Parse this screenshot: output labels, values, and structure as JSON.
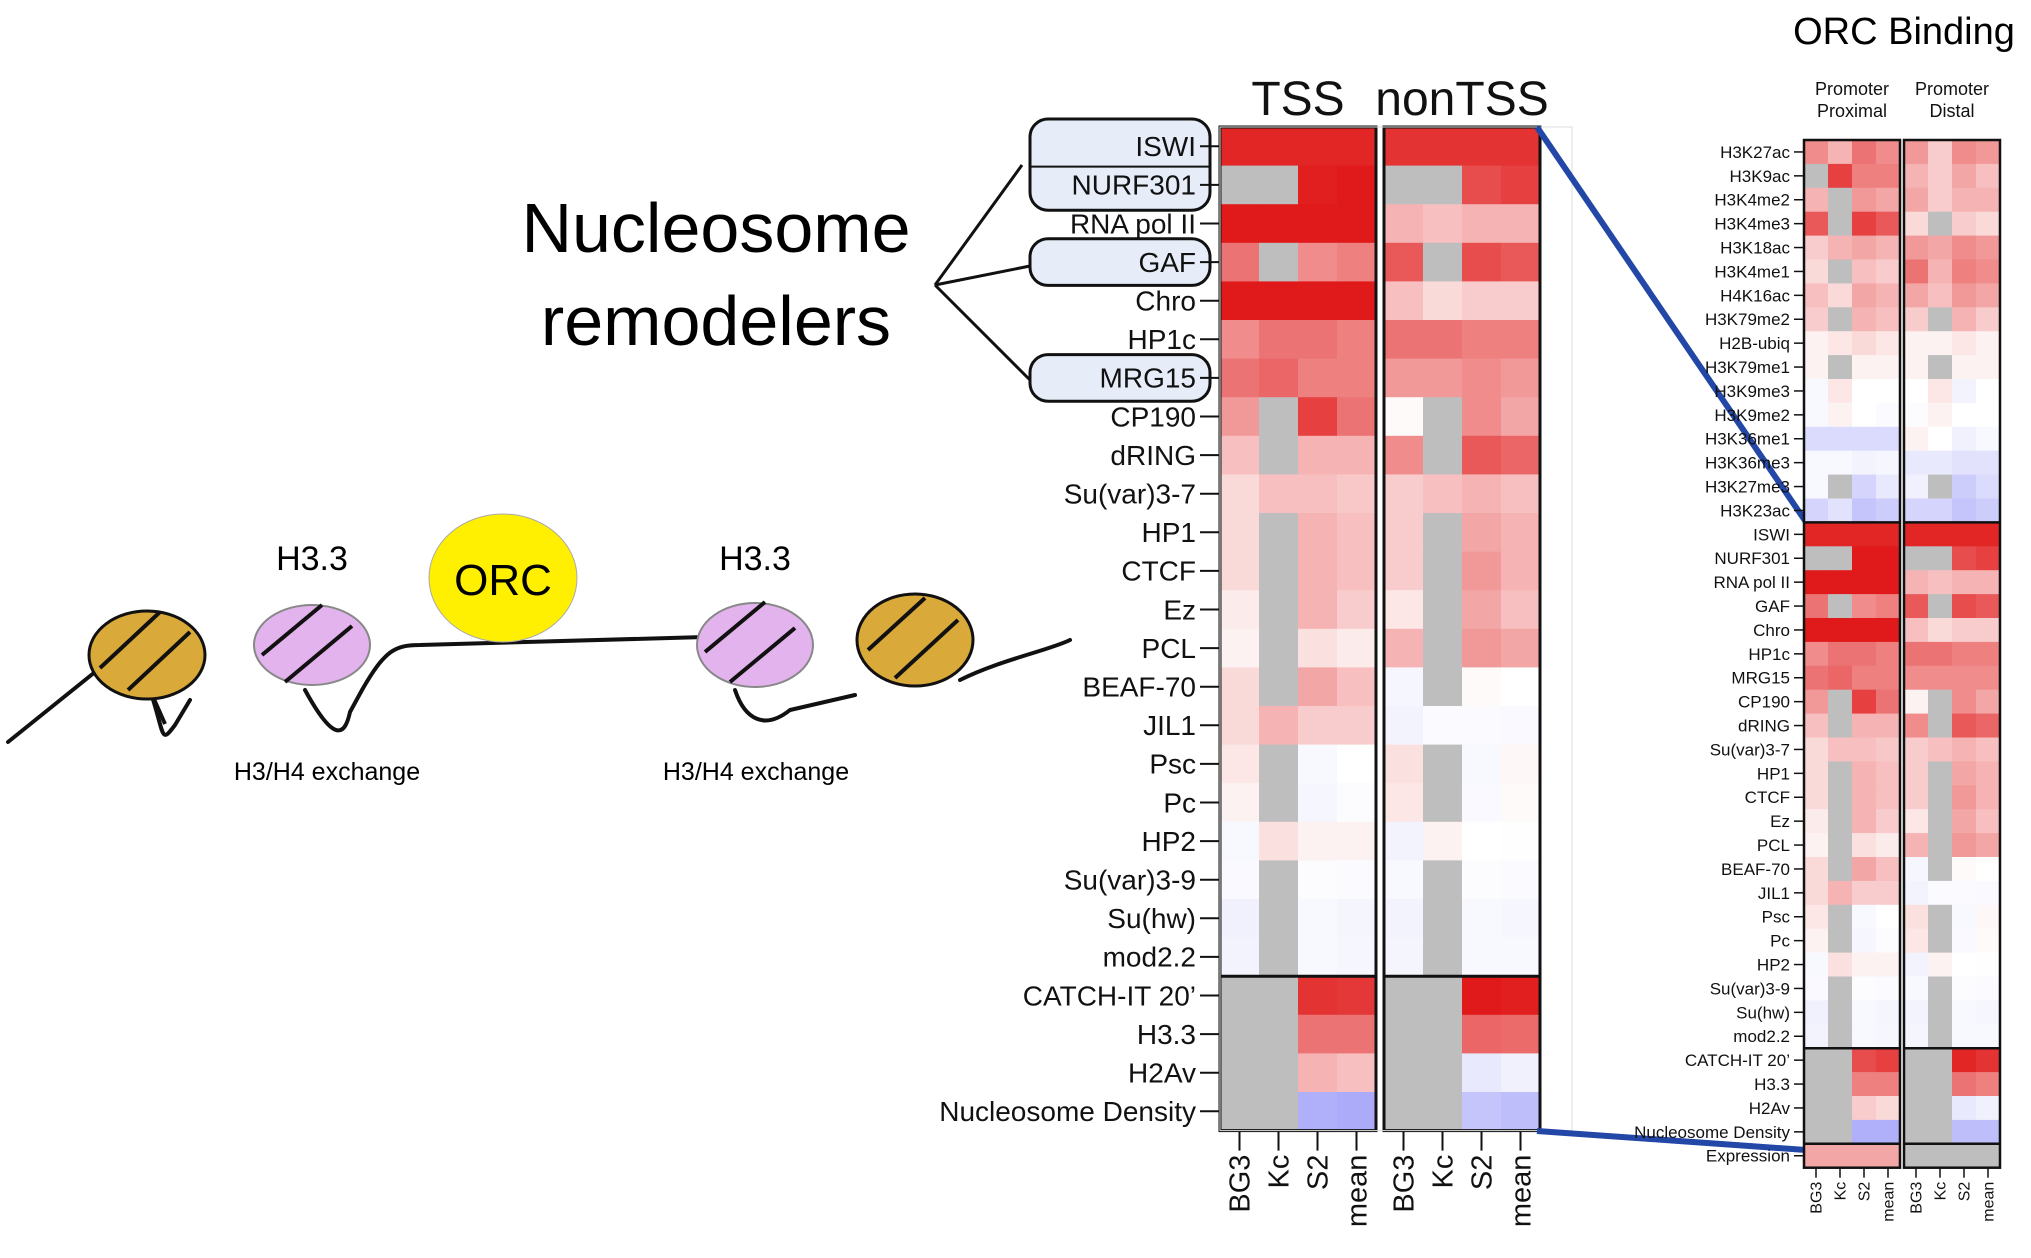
{
  "left_panel": {
    "heading_line1": "Nucleosome",
    "heading_line2": "remodelers",
    "orc_label": "ORC",
    "h33_left": "H3.3",
    "h33_right": "H3.3",
    "exchange_left": "H3/H4 exchange",
    "exchange_right": "H3/H4 exchange"
  },
  "middle_heatmap": {
    "group_titles": [
      "TSS",
      "nonTSS"
    ],
    "column_labels": [
      "BG3",
      "Kc",
      "S2",
      "mean",
      "BG3",
      "Kc",
      "S2",
      "mean"
    ],
    "highlighted_rows": [
      "ISWI",
      "NURF301",
      "GAF",
      "MRG15"
    ],
    "row_labels": [
      "ISWI",
      "NURF301",
      "RNA pol II",
      "GAF",
      "Chro",
      "HP1c",
      "MRG15",
      "CP190",
      "dRING",
      "Su(var)3-7",
      "HP1",
      "CTCF",
      "Ez",
      "PCL",
      "BEAF-70",
      "JIL1",
      "Psc",
      "Pc",
      "HP2",
      "Su(var)3-9",
      "Su(hw)",
      "mod2.2",
      "CATCH-IT 20’",
      "H3.3",
      "H2Av",
      "Nucleosome Density"
    ],
    "values": [
      [
        0.85,
        0.85,
        0.85,
        0.85,
        0.8,
        0.8,
        0.8,
        0.8
      ],
      [
        null,
        null,
        0.88,
        0.9,
        null,
        null,
        0.7,
        0.75
      ],
      [
        0.9,
        0.9,
        0.9,
        0.9,
        0.3,
        0.25,
        0.3,
        0.3
      ],
      [
        0.55,
        null,
        0.45,
        0.5,
        0.65,
        null,
        0.7,
        0.65
      ],
      [
        0.9,
        0.9,
        0.9,
        0.9,
        0.25,
        0.15,
        0.2,
        0.2
      ],
      [
        0.45,
        0.55,
        0.55,
        0.5,
        0.55,
        0.55,
        0.5,
        0.5
      ],
      [
        0.55,
        0.6,
        0.5,
        0.5,
        0.4,
        0.4,
        0.45,
        0.4
      ],
      [
        0.4,
        null,
        0.75,
        0.55,
        0.02,
        null,
        0.45,
        0.35
      ],
      [
        0.25,
        null,
        0.3,
        0.3,
        0.45,
        null,
        0.65,
        0.6
      ],
      [
        0.15,
        0.25,
        0.25,
        0.22,
        0.2,
        0.25,
        0.3,
        0.25
      ],
      [
        0.15,
        null,
        0.3,
        0.25,
        0.2,
        null,
        0.35,
        0.3
      ],
      [
        0.15,
        null,
        0.3,
        0.25,
        0.2,
        null,
        0.4,
        0.3
      ],
      [
        0.08,
        null,
        0.3,
        0.2,
        0.1,
        null,
        0.35,
        0.25
      ],
      [
        0.05,
        null,
        0.12,
        0.08,
        0.3,
        null,
        0.4,
        0.35
      ],
      [
        0.15,
        null,
        0.35,
        0.25,
        -0.06,
        null,
        0.02,
        0.0
      ],
      [
        0.15,
        0.3,
        0.2,
        0.2,
        -0.08,
        -0.03,
        -0.03,
        -0.04
      ],
      [
        0.1,
        null,
        -0.05,
        0.0,
        0.12,
        null,
        -0.05,
        0.03
      ],
      [
        0.05,
        null,
        -0.06,
        -0.02,
        0.1,
        null,
        -0.04,
        0.02
      ],
      [
        -0.05,
        0.12,
        0.05,
        0.05,
        -0.08,
        0.05,
        0.0,
        -0.01
      ],
      [
        -0.04,
        null,
        -0.02,
        -0.03,
        -0.05,
        null,
        -0.02,
        -0.03
      ],
      [
        -0.1,
        null,
        -0.05,
        -0.07,
        -0.08,
        null,
        -0.05,
        -0.06
      ],
      [
        -0.08,
        null,
        -0.05,
        -0.06,
        -0.07,
        null,
        -0.05,
        -0.05
      ],
      [
        null,
        null,
        0.8,
        0.78,
        null,
        null,
        0.9,
        0.88
      ],
      [
        null,
        null,
        0.55,
        0.55,
        null,
        null,
        0.6,
        0.58
      ],
      [
        null,
        null,
        0.3,
        0.25,
        null,
        null,
        -0.15,
        -0.1
      ],
      [
        null,
        null,
        -0.55,
        -0.58,
        null,
        null,
        -0.4,
        -0.45
      ]
    ]
  },
  "right_heatmap": {
    "title": "ORC Binding",
    "group_titles": [
      [
        "Promoter",
        "Proximal"
      ],
      [
        "Promoter",
        "Distal"
      ]
    ],
    "column_labels": [
      "BG3",
      "Kc",
      "S2",
      "mean",
      "BG3",
      "Kc",
      "S2",
      "mean"
    ],
    "row_labels": [
      "H3K27ac",
      "H3K9ac",
      "H3K4me2",
      "H3K4me3",
      "H3K18ac",
      "H3K4me1",
      "H4K16ac",
      "H3K79me2",
      "H2B-ubiq",
      "H3K79me1",
      "H3K9me3",
      "H3K9me2",
      "H3K36me1",
      "H3K36me3",
      "H3K27me3",
      "H3K23ac",
      "ISWI",
      "NURF301",
      "RNA pol II",
      "GAF",
      "Chro",
      "HP1c",
      "MRG15",
      "CP190",
      "dRING",
      "Su(var)3-7",
      "HP1",
      "CTCF",
      "Ez",
      "PCL",
      "BEAF-70",
      "JIL1",
      "Psc",
      "Pc",
      "HP2",
      "Su(var)3-9",
      "Su(hw)",
      "mod2.2",
      "CATCH-IT 20’",
      "H3.3",
      "H2Av",
      "Nucleosome Density",
      "Expression"
    ],
    "values": [
      [
        0.45,
        0.3,
        0.55,
        0.45,
        0.4,
        0.2,
        0.45,
        0.4
      ],
      [
        null,
        0.75,
        0.5,
        0.5,
        0.3,
        0.2,
        0.35,
        0.25
      ],
      [
        0.3,
        null,
        0.4,
        0.35,
        0.35,
        0.2,
        0.3,
        0.3
      ],
      [
        0.65,
        null,
        0.75,
        0.65,
        0.15,
        null,
        0.2,
        0.15
      ],
      [
        0.2,
        0.3,
        0.35,
        0.3,
        0.4,
        0.35,
        0.45,
        0.4
      ],
      [
        0.15,
        null,
        0.25,
        0.2,
        0.55,
        0.3,
        0.5,
        0.45
      ],
      [
        0.25,
        0.15,
        0.35,
        0.3,
        0.35,
        0.25,
        0.4,
        0.35
      ],
      [
        0.2,
        null,
        0.3,
        0.25,
        0.2,
        null,
        0.3,
        0.2
      ],
      [
        0.05,
        0.1,
        0.15,
        0.1,
        0.05,
        0.05,
        0.1,
        0.05
      ],
      [
        0.05,
        null,
        0.05,
        0.05,
        0.05,
        null,
        0.05,
        0.05
      ],
      [
        -0.05,
        0.1,
        0.0,
        0.0,
        0.0,
        0.1,
        -0.08,
        0.0
      ],
      [
        -0.05,
        0.05,
        0.0,
        -0.03,
        -0.02,
        0.05,
        0.0,
        0.0
      ],
      [
        -0.25,
        -0.25,
        -0.25,
        -0.25,
        0.05,
        0.0,
        -0.1,
        -0.05
      ],
      [
        -0.05,
        -0.05,
        -0.08,
        -0.06,
        -0.15,
        -0.15,
        -0.2,
        -0.2
      ],
      [
        -0.05,
        null,
        -0.3,
        -0.15,
        -0.1,
        null,
        -0.35,
        -0.25
      ],
      [
        -0.3,
        -0.2,
        -0.4,
        -0.35,
        -0.3,
        -0.3,
        -0.4,
        -0.35
      ],
      [
        0.85,
        0.85,
        0.85,
        0.85,
        0.85,
        0.85,
        0.85,
        0.85
      ],
      [
        null,
        null,
        0.9,
        0.9,
        null,
        null,
        0.7,
        0.75
      ],
      [
        0.9,
        0.9,
        0.9,
        0.9,
        0.3,
        0.25,
        0.3,
        0.3
      ],
      [
        0.55,
        null,
        0.45,
        0.5,
        0.65,
        null,
        0.7,
        0.65
      ],
      [
        0.9,
        0.9,
        0.9,
        0.9,
        0.25,
        0.15,
        0.2,
        0.2
      ],
      [
        0.45,
        0.55,
        0.55,
        0.5,
        0.55,
        0.55,
        0.5,
        0.5
      ],
      [
        0.55,
        0.6,
        0.5,
        0.5,
        0.45,
        0.45,
        0.45,
        0.45
      ],
      [
        0.4,
        null,
        0.75,
        0.55,
        0.05,
        null,
        0.45,
        0.35
      ],
      [
        0.25,
        null,
        0.3,
        0.3,
        0.45,
        null,
        0.65,
        0.6
      ],
      [
        0.15,
        0.25,
        0.25,
        0.22,
        0.2,
        0.25,
        0.3,
        0.25
      ],
      [
        0.15,
        null,
        0.3,
        0.25,
        0.2,
        null,
        0.35,
        0.3
      ],
      [
        0.15,
        null,
        0.3,
        0.25,
        0.2,
        null,
        0.4,
        0.3
      ],
      [
        0.08,
        null,
        0.3,
        0.2,
        0.1,
        null,
        0.35,
        0.25
      ],
      [
        0.05,
        null,
        0.12,
        0.08,
        0.3,
        null,
        0.4,
        0.35
      ],
      [
        0.15,
        null,
        0.35,
        0.25,
        -0.06,
        null,
        0.02,
        0.0
      ],
      [
        0.15,
        0.3,
        0.2,
        0.2,
        -0.08,
        -0.03,
        -0.03,
        -0.04
      ],
      [
        0.1,
        null,
        -0.05,
        0.0,
        0.12,
        null,
        -0.05,
        0.03
      ],
      [
        0.05,
        null,
        -0.06,
        -0.02,
        0.1,
        null,
        -0.04,
        0.02
      ],
      [
        -0.05,
        0.12,
        0.05,
        0.05,
        -0.08,
        0.05,
        0.0,
        -0.01
      ],
      [
        -0.04,
        null,
        -0.02,
        -0.03,
        -0.05,
        null,
        -0.02,
        -0.03
      ],
      [
        -0.1,
        null,
        -0.05,
        -0.07,
        -0.08,
        null,
        -0.05,
        -0.06
      ],
      [
        -0.08,
        null,
        -0.05,
        -0.06,
        -0.07,
        null,
        -0.05,
        -0.05
      ],
      [
        null,
        null,
        0.7,
        0.75,
        null,
        null,
        0.85,
        0.8
      ],
      [
        null,
        null,
        0.5,
        0.5,
        null,
        null,
        0.55,
        0.5
      ],
      [
        null,
        null,
        0.2,
        0.15,
        null,
        null,
        -0.15,
        -0.1
      ],
      [
        null,
        null,
        -0.55,
        -0.55,
        null,
        null,
        -0.45,
        -0.45
      ],
      [
        0.35,
        0.35,
        0.35,
        0.35,
        null,
        null,
        null,
        null
      ]
    ]
  },
  "colors": {
    "high": "#dd0000",
    "neutral": "#ffffff",
    "low": "#6f6ff5",
    "missing": "#bebebe",
    "nucleosome": "#d9a93a",
    "h33": "#e3b3ee",
    "orc": "#ffef00",
    "highlight_fill": "#e6edf9",
    "connector": "#2347a6"
  }
}
